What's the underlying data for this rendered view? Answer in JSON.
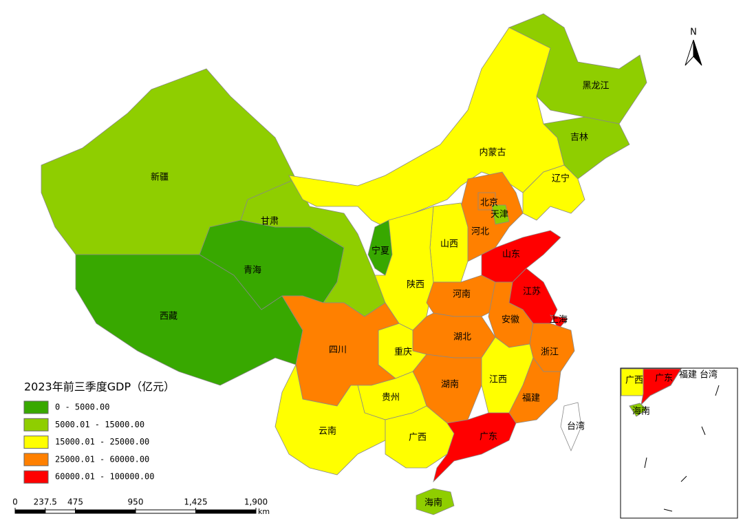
{
  "map": {
    "title": "2023年前三季度GDP（亿元）",
    "north": "N",
    "legend": [
      {
        "label": "0 - 5000.00",
        "color": "#38a800"
      },
      {
        "label": "5000.01 - 15000.00",
        "color": "#8fce00"
      },
      {
        "label": "15000.01 - 25000.00",
        "color": "#ffff00"
      },
      {
        "label": "25000.01 - 60000.00",
        "color": "#ff8000"
      },
      {
        "label": "60000.01 - 100000.00",
        "color": "#ff0000"
      }
    ],
    "provinces": [
      {
        "name": "新疆",
        "color": "#8fce00"
      },
      {
        "name": "西藏",
        "color": "#38a800"
      },
      {
        "name": "青海",
        "color": "#38a800"
      },
      {
        "name": "甘肃",
        "color": "#8fce00"
      },
      {
        "name": "内蒙古",
        "color": "#ffff00"
      },
      {
        "name": "黑龙江",
        "color": "#8fce00"
      },
      {
        "name": "吉林",
        "color": "#8fce00"
      },
      {
        "name": "辽宁",
        "color": "#ffff00"
      },
      {
        "name": "河北",
        "color": "#ff8000"
      },
      {
        "name": "北京",
        "color": "#ff8000"
      },
      {
        "name": "天津",
        "color": "#8fce00"
      },
      {
        "name": "山西",
        "color": "#ffff00"
      },
      {
        "name": "宁夏",
        "color": "#38a800"
      },
      {
        "name": "陕西",
        "color": "#ffff00"
      },
      {
        "name": "山东",
        "color": "#ff0000"
      },
      {
        "name": "河南",
        "color": "#ff8000"
      },
      {
        "name": "江苏",
        "color": "#ff0000"
      },
      {
        "name": "上海",
        "color": "#ff0000"
      },
      {
        "name": "安徽",
        "color": "#ff8000"
      },
      {
        "name": "湖北",
        "color": "#ff8000"
      },
      {
        "name": "浙江",
        "color": "#ff8000"
      },
      {
        "name": "重庆",
        "color": "#ffff00"
      },
      {
        "name": "四川",
        "color": "#ff8000"
      },
      {
        "name": "湖南",
        "color": "#ff8000"
      },
      {
        "name": "江西",
        "color": "#ffff00"
      },
      {
        "name": "福建",
        "color": "#ff8000"
      },
      {
        "name": "贵州",
        "color": "#ffff00"
      },
      {
        "name": "云南",
        "color": "#ffff00"
      },
      {
        "name": "广西",
        "color": "#ffff00"
      },
      {
        "name": "广东",
        "color": "#ff0000"
      },
      {
        "name": "海南",
        "color": "#8fce00"
      },
      {
        "name": "台湾",
        "color": "#ffffff"
      }
    ],
    "inset_labels": [
      "广西",
      "广东",
      "福建",
      "台湾",
      "海南"
    ],
    "scale_bar": {
      "ticks": [
        0,
        237.5,
        475,
        950,
        {
          "value": 1425,
          "label": "1,425"
        },
        {
          "value": 1900,
          "label": "1,900"
        }
      ],
      "unit": "km"
    }
  }
}
